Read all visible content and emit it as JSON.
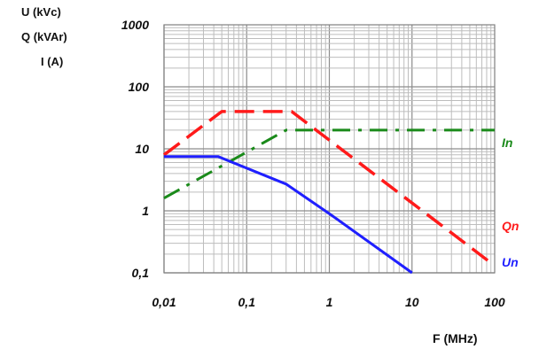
{
  "chart_data": {
    "type": "line",
    "xscale": "log",
    "yscale": "log",
    "xlim": [
      0.01,
      100
    ],
    "ylim": [
      0.1,
      1000
    ],
    "x_ticks": [
      "0,01",
      "0,1",
      "1",
      "10",
      "100"
    ],
    "y_ticks": [
      "1000",
      "100",
      "10",
      "1",
      "0,1"
    ],
    "ylabel_lines": [
      "U  (kVc)",
      "Q  (kVAr)",
      "I  (A)"
    ],
    "xlabel": "F (MHz)",
    "grid": true,
    "series": [
      {
        "name": "In",
        "color": "#1a8a1a",
        "style": "dashdot",
        "points": [
          [
            0.01,
            1.6
          ],
          [
            0.3,
            20
          ],
          [
            100,
            20
          ]
        ]
      },
      {
        "name": "Qn",
        "color": "#ff1a1a",
        "style": "dashed",
        "points": [
          [
            0.01,
            8
          ],
          [
            0.05,
            40
          ],
          [
            0.35,
            40
          ],
          [
            100,
            0.13
          ]
        ]
      },
      {
        "name": "Un",
        "color": "#1f1fff",
        "style": "solid",
        "points": [
          [
            0.01,
            7.5
          ],
          [
            0.045,
            7.5
          ],
          [
            0.3,
            2.7
          ],
          [
            1,
            0.9
          ],
          [
            10,
            0.1
          ]
        ]
      }
    ]
  }
}
